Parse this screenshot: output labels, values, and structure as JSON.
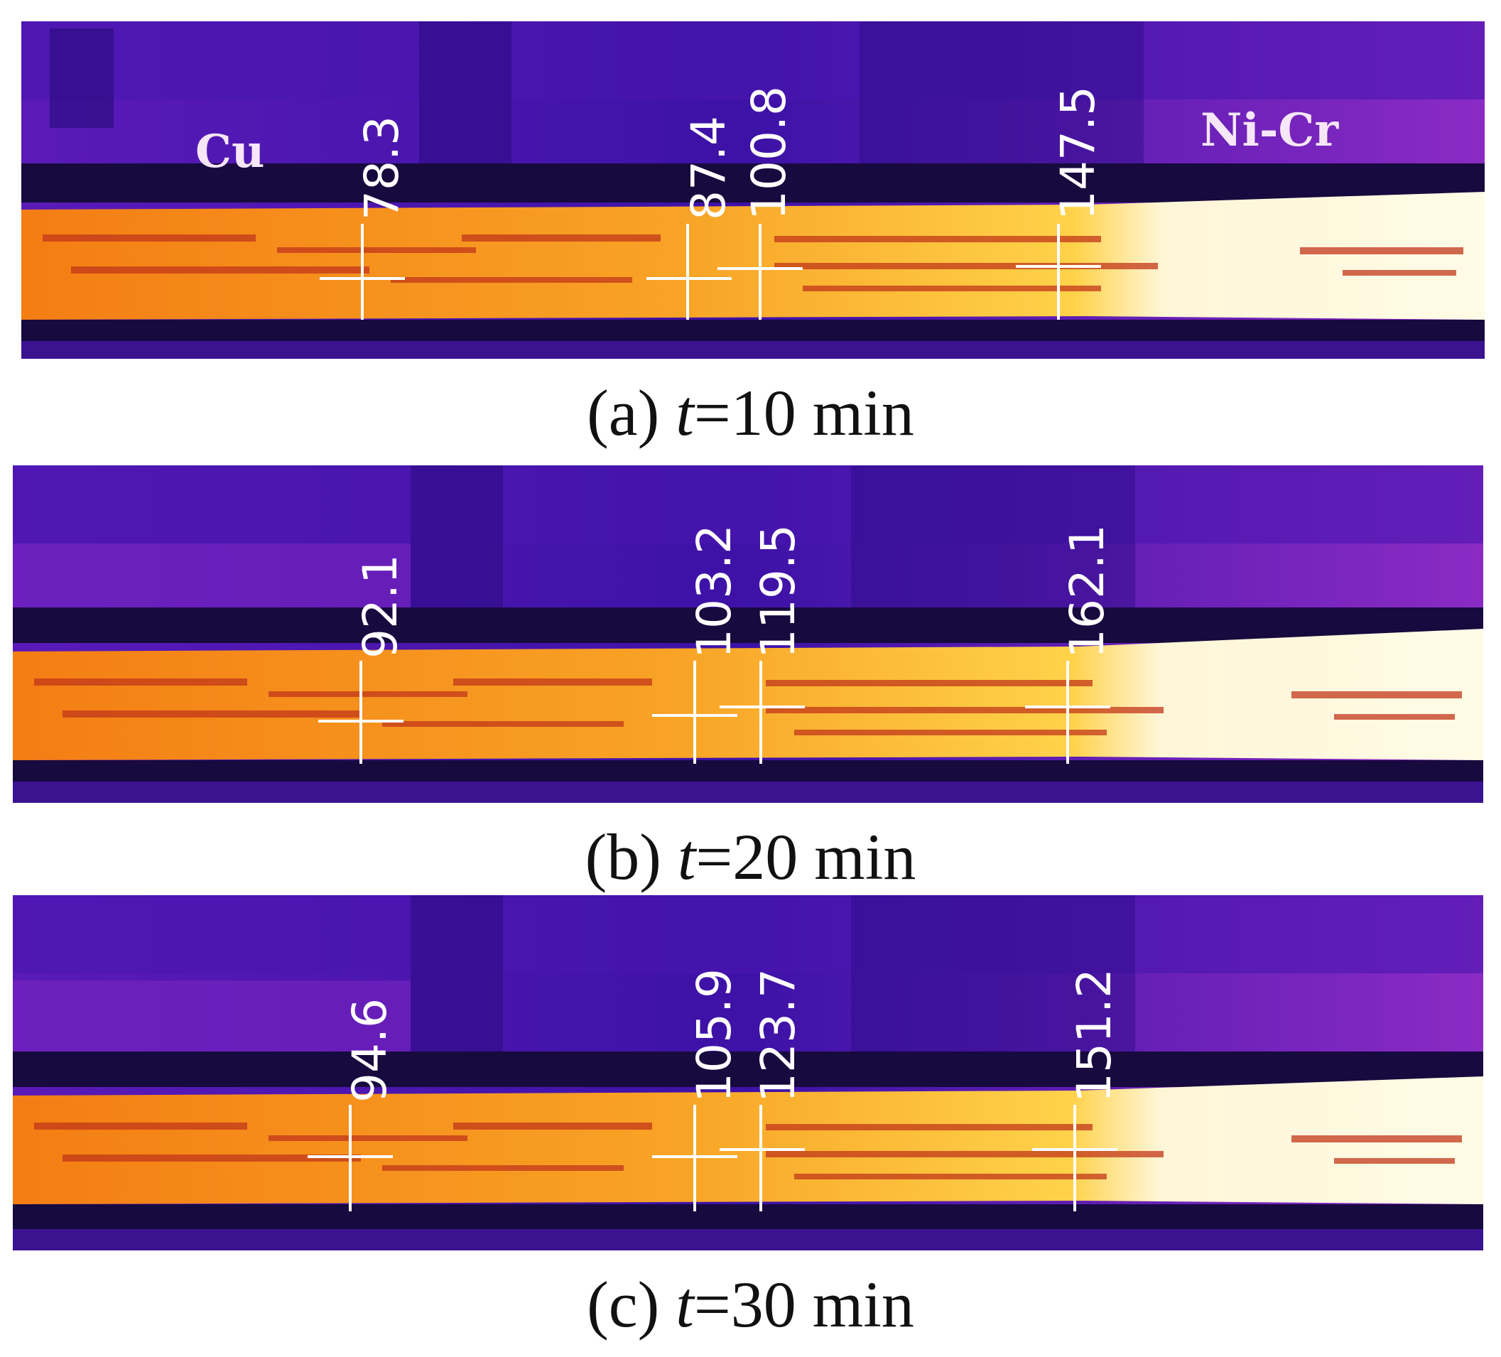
{
  "panels": [
    {
      "materials": [
        "Cu",
        "Ni-Cr"
      ],
      "readings": [
        "78.3",
        "87.4",
        "100.8",
        "147.5"
      ],
      "caption": {
        "prefix": "(a)",
        "var": "t",
        "rest": "=10 min"
      }
    },
    {
      "materials": [],
      "readings": [
        "92.1",
        "103.2",
        "119.5",
        "162.1"
      ],
      "caption": {
        "prefix": "(b)",
        "var": "t",
        "rest": "=20 min"
      }
    },
    {
      "materials": [],
      "readings": [
        "94.6",
        "105.9",
        "123.7",
        "151.2"
      ],
      "caption": {
        "prefix": "(c)",
        "var": "t",
        "rest": "=30 min"
      }
    }
  ],
  "colors": {
    "background_purple": "#6a23c8",
    "dark_band": "#170a3e",
    "hot_orange": "#f7931a",
    "hot_yellow": "#ffd24a",
    "white_hot": "#fffbe6"
  }
}
